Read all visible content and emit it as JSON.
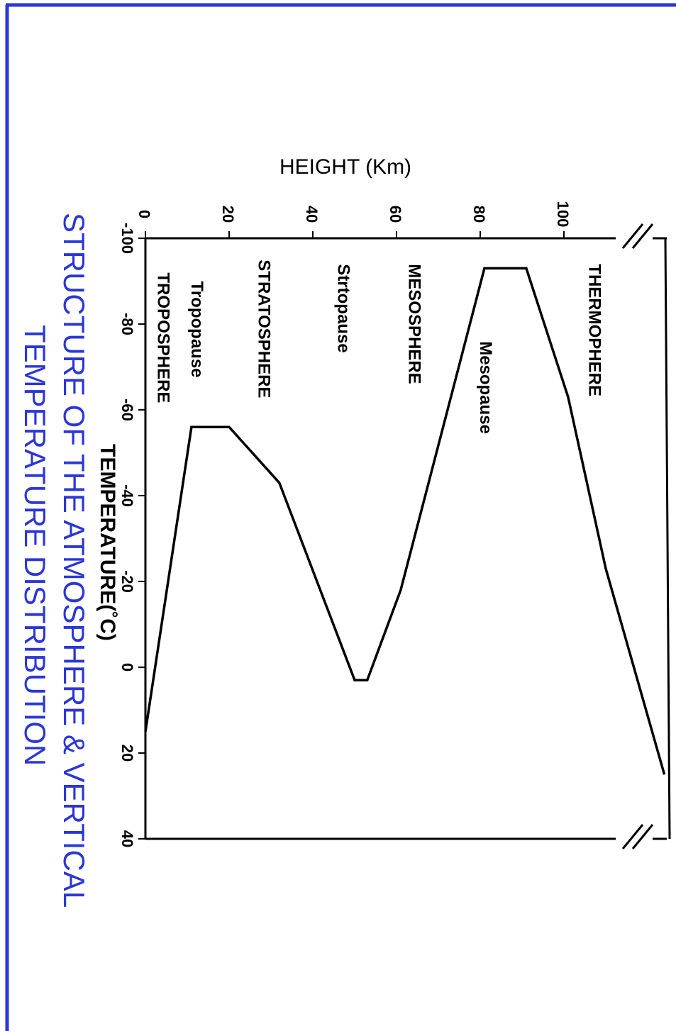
{
  "colors": {
    "frame": "#2a36d8",
    "caption": "#2a36d8",
    "line": "#000000"
  },
  "caption": {
    "line1": "STRUCTURE OF THE ATMOSPHERE & VERTICAL",
    "line2": "TEMPERATURE  DISTRIBUTION"
  },
  "chart_data": {
    "type": "line",
    "orientation": "rotated 90 degrees clockwise",
    "xlabel": "TEMPERATURE(˚C)",
    "ylabel": "HEIGHT (Km)",
    "xlim": [
      -100,
      40
    ],
    "ylim": [
      0,
      110
    ],
    "x_ticks": [
      {
        "value": -100,
        "label": "-100"
      },
      {
        "value": -80,
        "label": "-80"
      },
      {
        "value": -60,
        "label": "-60"
      },
      {
        "value": -40,
        "label": "-40"
      },
      {
        "value": -20,
        "label": "-20"
      },
      {
        "value": 0,
        "label": "0"
      },
      {
        "value": 20,
        "label": "20"
      },
      {
        "value": 40,
        "label": "40"
      }
    ],
    "y_ticks": [
      {
        "value": 0,
        "label": "0"
      },
      {
        "value": 20,
        "label": "20"
      },
      {
        "value": 40,
        "label": "40"
      },
      {
        "value": 60,
        "label": "60"
      },
      {
        "value": 80,
        "label": "80"
      },
      {
        "value": 100,
        "label": "100"
      }
    ],
    "series": [
      {
        "points": [
          {
            "x": 15,
            "y": 0
          },
          {
            "x": -56,
            "y": 11
          },
          {
            "x": -56,
            "y": 20
          },
          {
            "x": -43,
            "y": 32
          },
          {
            "x": 3,
            "y": 50
          },
          {
            "x": 3,
            "y": 53
          },
          {
            "x": -18,
            "y": 61
          },
          {
            "x": -93,
            "y": 81
          },
          {
            "x": -93,
            "y": 91
          },
          {
            "x": -63,
            "y": 101
          },
          {
            "x": -23,
            "y": 110
          },
          {
            "x": 25,
            "y": 124
          }
        ]
      }
    ],
    "layer_labels": [
      {
        "text": "TROPOSPHERE",
        "x": -92,
        "y": 3
      },
      {
        "text": "Tropopause",
        "x": -90,
        "y": 11
      },
      {
        "text": "STRATOSPHERE",
        "x": -95,
        "y": 27
      },
      {
        "text": "Strtopause",
        "x": -94,
        "y": 46
      },
      {
        "text": "MESOSPHERE",
        "x": -94,
        "y": 63
      },
      {
        "text": "Mesopause",
        "x": -76,
        "y": 80
      },
      {
        "text": "THERMOPHERE",
        "x": -94,
        "y": 106
      }
    ]
  }
}
